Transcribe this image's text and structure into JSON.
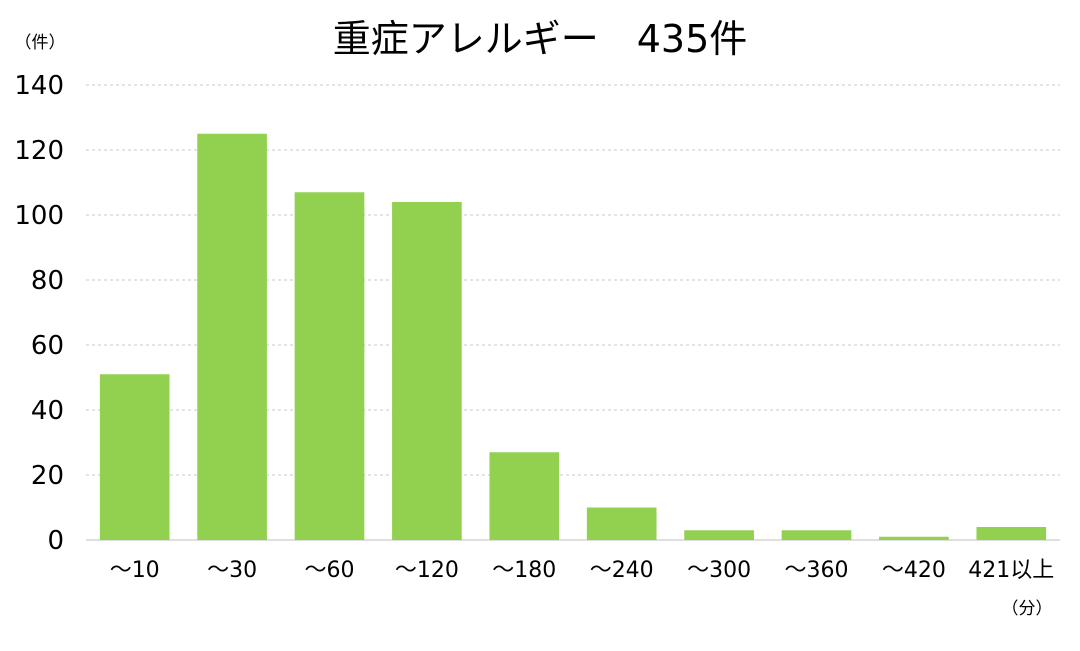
{
  "chart_data": {
    "type": "bar",
    "title": "重症アレルギー　435件",
    "ylabel": "（件）",
    "xlabel": "（分）",
    "categories": [
      "～10",
      "～30",
      "～60",
      "～120",
      "～180",
      "～240",
      "～300",
      "～360",
      "～420",
      "421以上"
    ],
    "values": [
      51,
      125,
      107,
      104,
      27,
      10,
      3,
      3,
      1,
      4
    ],
    "ylim": [
      0,
      140
    ],
    "yticks": [
      0,
      20,
      40,
      60,
      80,
      100,
      120,
      140
    ],
    "grid": true,
    "legend": "none",
    "bar_color": "#92d050"
  }
}
